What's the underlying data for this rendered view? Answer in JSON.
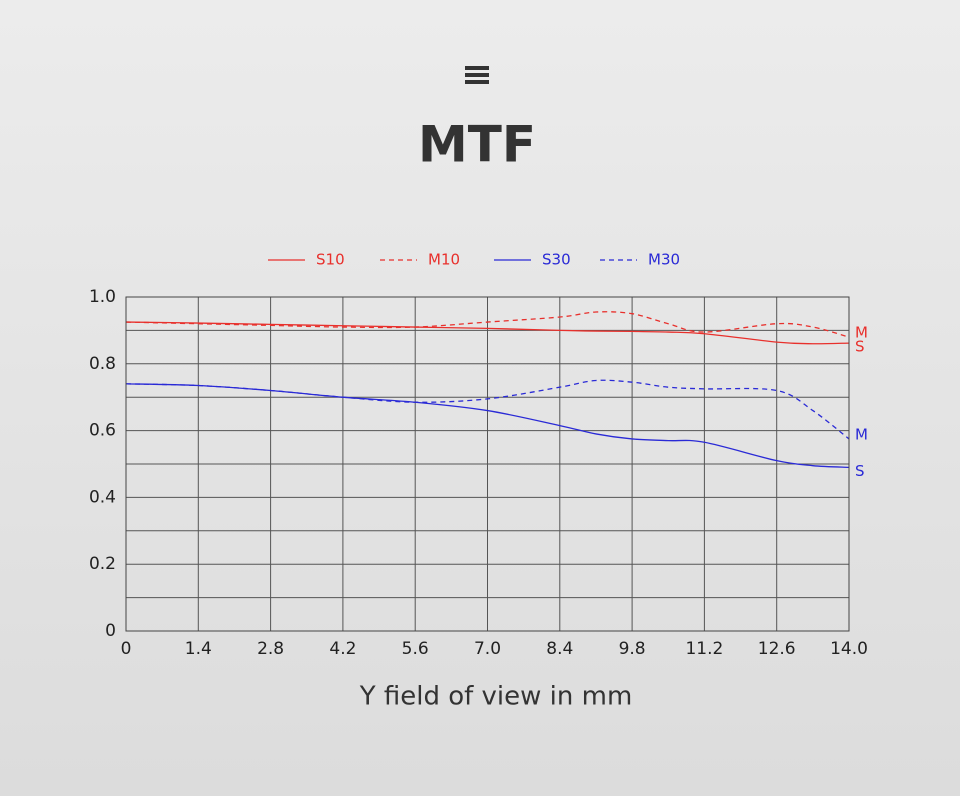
{
  "chart_data": {
    "type": "line",
    "title": "MTF",
    "x_label": "Y field of view in mm",
    "x": [
      0,
      1.4,
      2.8,
      4.2,
      5.6,
      7,
      8.4,
      9.1,
      9.8,
      10.5,
      11.2,
      12.6,
      13.3,
      14
    ],
    "series": [
      {
        "name": "S10",
        "color": "#e8302c",
        "dashed": false,
        "end_label": "S",
        "values": [
          0.925,
          0.922,
          0.918,
          0.914,
          0.91,
          0.906,
          0.9,
          0.898,
          0.897,
          0.895,
          0.89,
          0.865,
          0.86,
          0.862
        ]
      },
      {
        "name": "M10",
        "color": "#e8302c",
        "dashed": true,
        "end_label": "M",
        "values": [
          0.925,
          0.92,
          0.915,
          0.91,
          0.91,
          0.925,
          0.94,
          0.955,
          0.95,
          0.92,
          0.895,
          0.92,
          0.91,
          0.88
        ]
      },
      {
        "name": "S30",
        "color": "#2a2ad6",
        "dashed": false,
        "end_label": "S",
        "values": [
          0.74,
          0.735,
          0.72,
          0.7,
          0.685,
          0.66,
          0.615,
          0.59,
          0.575,
          0.57,
          0.565,
          0.51,
          0.495,
          0.49
        ]
      },
      {
        "name": "M30",
        "color": "#2a2ad6",
        "dashed": true,
        "end_label": "M",
        "values": [
          0.74,
          0.735,
          0.72,
          0.7,
          0.685,
          0.695,
          0.73,
          0.75,
          0.745,
          0.73,
          0.725,
          0.72,
          0.66,
          0.575
        ]
      }
    ],
    "xlim": [
      0,
      14
    ],
    "ylim": [
      0,
      1
    ],
    "xticks": [
      0,
      1.4,
      2.8,
      4.2,
      5.6,
      {
        "value": 7,
        "label": "7.0"
      },
      8.4,
      9.8,
      11.2,
      12.6,
      {
        "value": 14,
        "label": "14.0"
      }
    ],
    "yticks": [
      0,
      0.2,
      0.4,
      0.6,
      0.8,
      {
        "value": 1,
        "label": "1.0"
      }
    ],
    "minor_yticks": [
      0.1,
      0.3,
      0.5,
      0.7,
      0.9
    ],
    "grid": true
  }
}
